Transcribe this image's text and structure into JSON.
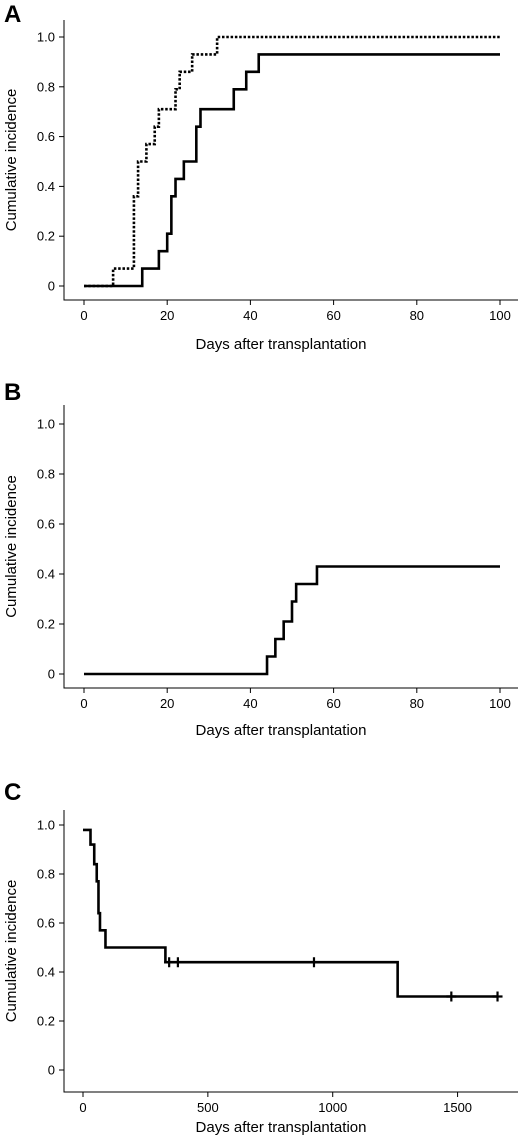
{
  "chart_data": [
    {
      "panel": "A",
      "type": "line",
      "step": true,
      "xlabel": "Days after transplantation",
      "ylabel": "Cumulative incidence",
      "xlim": [
        0,
        100
      ],
      "ylim": [
        0,
        1.0
      ],
      "xticks": [
        0,
        20,
        40,
        60,
        80,
        100
      ],
      "xtick_labels": [
        "0",
        "20",
        "40",
        "60",
        "80",
        "100"
      ],
      "yticks": [
        0,
        0.2,
        0.4,
        0.6,
        0.8,
        1.0
      ],
      "ytick_labels": [
        "0",
        "0.2",
        "0.4",
        "0.6",
        "0.8",
        "1.0"
      ],
      "grid": false,
      "series": [
        {
          "style": "dotted",
          "color": "#000000",
          "x": [
            0,
            7,
            12,
            13,
            15,
            17,
            18,
            19,
            22,
            23,
            26,
            30,
            32,
            100
          ],
          "y": [
            0,
            0.07,
            0.36,
            0.5,
            0.57,
            0.64,
            0.71,
            0.71,
            0.79,
            0.86,
            0.93,
            0.93,
            1.0,
            1.0
          ]
        },
        {
          "style": "solid",
          "color": "#000000",
          "x": [
            0,
            14,
            18,
            20,
            21,
            22,
            24,
            27,
            28,
            36,
            39,
            42,
            100
          ],
          "y": [
            0,
            0.07,
            0.14,
            0.21,
            0.36,
            0.43,
            0.5,
            0.64,
            0.71,
            0.79,
            0.86,
            0.93,
            0.93
          ]
        }
      ]
    },
    {
      "panel": "B",
      "type": "line",
      "step": true,
      "xlabel": "Days after transplantation",
      "ylabel": "Cumulative incidence",
      "xlim": [
        0,
        100
      ],
      "ylim": [
        0,
        1.0
      ],
      "xticks": [
        0,
        20,
        40,
        60,
        80,
        100
      ],
      "xtick_labels": [
        "0",
        "20",
        "40",
        "60",
        "80",
        "100"
      ],
      "yticks": [
        0,
        0.2,
        0.4,
        0.6,
        0.8,
        1.0
      ],
      "ytick_labels": [
        "0",
        "0.2",
        "0.4",
        "0.6",
        "0.8",
        "1.0"
      ],
      "grid": false,
      "series": [
        {
          "style": "solid",
          "color": "#000000",
          "x": [
            0,
            44,
            46,
            48,
            50,
            51,
            53,
            56,
            100
          ],
          "y": [
            0,
            0.07,
            0.14,
            0.21,
            0.29,
            0.36,
            0.36,
            0.43,
            0.43
          ]
        }
      ]
    },
    {
      "panel": "C",
      "type": "line",
      "step": true,
      "xlabel": "Days after transplantation",
      "ylabel": "Cumulative incidence",
      "xlim": [
        0,
        1750
      ],
      "ylim": [
        0,
        1.0
      ],
      "xticks": [
        0,
        500,
        1000,
        1500
      ],
      "xtick_labels": [
        "0",
        "500",
        "1000",
        "1500"
      ],
      "yticks": [
        0,
        0.2,
        0.4,
        0.6,
        0.8,
        1.0
      ],
      "ytick_labels": [
        "0",
        "0.2",
        "0.4",
        "0.6",
        "0.8",
        "1.0"
      ],
      "grid": false,
      "series": [
        {
          "style": "solid",
          "color": "#000000",
          "x": [
            0,
            30,
            45,
            55,
            62,
            68,
            90,
            330,
            1260,
            1660
          ],
          "y": [
            0.98,
            0.92,
            0.84,
            0.77,
            0.64,
            0.57,
            0.5,
            0.44,
            0.3,
            0.3
          ],
          "censored": [
            {
              "x": 345,
              "y": 0.44
            },
            {
              "x": 380,
              "y": 0.44
            },
            {
              "x": 925,
              "y": 0.44
            },
            {
              "x": 1475,
              "y": 0.3
            },
            {
              "x": 1660,
              "y": 0.3
            }
          ]
        }
      ]
    }
  ]
}
